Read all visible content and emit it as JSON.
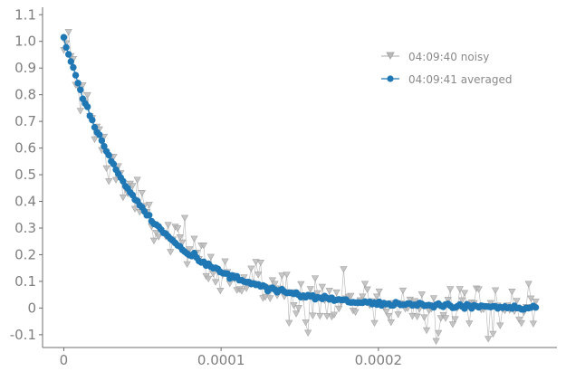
{
  "chart_data": {
    "type": "line",
    "title": "",
    "xlabel": "",
    "ylabel": "",
    "xlim": [
      -1.35e-05,
      0.0003135
    ],
    "ylim": [
      -0.148,
      1.128
    ],
    "grid": false,
    "legend_position": "top-right",
    "x_ticks": [
      0,
      0.0001,
      0.0002
    ],
    "x_tick_labels": [
      "0",
      "0.0001",
      "0.0002"
    ],
    "y_ticks": [
      -0.1,
      0,
      0.1,
      0.2,
      0.3,
      0.4,
      0.5,
      0.6,
      0.7,
      0.8,
      0.9,
      1.0,
      1.1
    ],
    "y_tick_labels": [
      "-0.1",
      "0",
      "0.1",
      "0.2",
      "0.3",
      "0.4",
      "0.5",
      "0.6",
      "0.7",
      "0.8",
      "0.9",
      "1.0",
      "1.1"
    ],
    "x_start": 0,
    "x_end": 0.0003,
    "point_count": 200,
    "series": [
      {
        "name": "04:09:40 noisy",
        "color": "#a8a8a8",
        "marker": "triangle-down",
        "model": {
          "amplitude": 1.0,
          "tau": 5e-05,
          "offset": 0.0,
          "noise_std": 0.05
        }
      },
      {
        "name": "04:09:41 averaged",
        "color": "#1f77b4",
        "marker": "circle",
        "model": {
          "amplitude": 1.01,
          "tau": 5e-05,
          "offset": 0.0,
          "noise_std": 0.004
        }
      }
    ]
  }
}
